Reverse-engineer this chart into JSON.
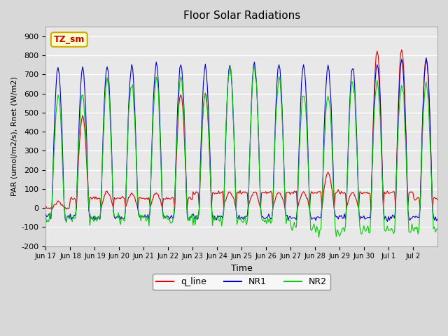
{
  "title": "Floor Solar Radiations",
  "ylabel": "PAR (umol/m2/s), Rnet (W/m2)",
  "xlabel": "Time",
  "ylim": [
    -200,
    950
  ],
  "yticks": [
    -200,
    -100,
    0,
    100,
    200,
    300,
    400,
    500,
    600,
    700,
    800,
    900
  ],
  "background_color": "#d8d8d8",
  "plot_bg_color": "#e8e8e8",
  "grid_color": "#ffffff",
  "annotation_text": "TZ_sm",
  "annotation_color": "#cc0000",
  "annotation_bg": "#ffffcc",
  "annotation_border": "#ccaa00",
  "colors": {
    "q_line": "#dd0000",
    "NR1": "#0000cc",
    "NR2": "#00cc00"
  },
  "legend_labels": [
    "q_line",
    "NR1",
    "NR2"
  ],
  "num_days": 16,
  "x_tick_labels": [
    "Jun 17",
    "Jun 18",
    "Jun 19",
    "Jun 20",
    "Jun 21",
    "Jun 22",
    "Jun 23",
    "Jun 24",
    "Jun 25",
    "Jun 26",
    "Jun 27",
    "Jun 28",
    "Jun 29",
    "Jun 30",
    "Jul 1",
    "Jul 2"
  ],
  "nr1_peaks": [
    730,
    730,
    745,
    740,
    750,
    755,
    745,
    750,
    760,
    755,
    750,
    745,
    740,
    760,
    775,
    780
  ],
  "nr2_peaks": [
    580,
    580,
    670,
    665,
    670,
    680,
    600,
    750,
    750,
    680,
    600,
    600,
    670,
    650,
    650,
    650
  ],
  "nr2_nights": [
    -50,
    -50,
    -55,
    -55,
    -55,
    -55,
    -55,
    -60,
    -60,
    -60,
    -100,
    -120,
    -110,
    -110,
    -110,
    -110
  ],
  "q_peaks": [
    30,
    480,
    80,
    80,
    80,
    600,
    600,
    80,
    80,
    80,
    80,
    180,
    80,
    830,
    830,
    790
  ],
  "q_nights": [
    0,
    50,
    50,
    50,
    50,
    50,
    80,
    80,
    80,
    80,
    80,
    80,
    80,
    80,
    80,
    50
  ]
}
